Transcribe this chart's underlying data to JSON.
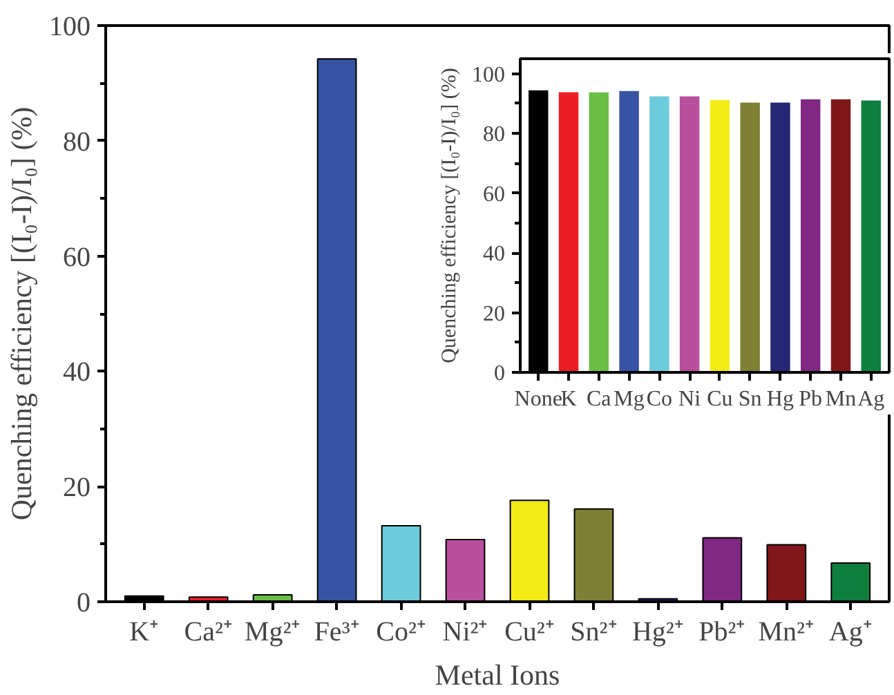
{
  "chart_data": [
    {
      "type": "bar",
      "xlabel": "Metal Ions",
      "ylabel": "Quenching efficiency [(I₀-I)/I₀] (%)",
      "categories": [
        "K⁺",
        "Ca²⁺",
        "Mg²⁺",
        "Fe³⁺",
        "Co²⁺",
        "Ni²⁺",
        "Cu²⁺",
        "Sn²⁺",
        "Hg²⁺",
        "Pb²⁺",
        "Mn²⁺",
        "Ag⁺"
      ],
      "values": [
        1.0,
        0.8,
        1.2,
        94.2,
        13.2,
        10.8,
        17.6,
        16.1,
        0.5,
        11.1,
        9.9,
        6.7
      ],
      "colors": [
        "#000000",
        "#ee1c24",
        "#6abd45",
        "#3853a4",
        "#6cccdb",
        "#b8509e",
        "#f2eb16",
        "#7f8034",
        "#262875",
        "#7f2982",
        "#7f1618",
        "#0f7f3e"
      ],
      "ylim": [
        0,
        100
      ],
      "yticks": [
        0,
        20,
        40,
        60,
        80,
        100
      ],
      "grid": false
    },
    {
      "type": "bar",
      "ylabel": "Quenching efficiency [(I₀-I)/I₀] (%)",
      "categories": [
        "None",
        "K",
        "Ca",
        "Mg",
        "Co",
        "Ni",
        "Cu",
        "Sn",
        "Hg",
        "Pb",
        "Mn",
        "Ag"
      ],
      "values": [
        94.4,
        93.8,
        93.7,
        94.2,
        92.4,
        92.4,
        91.2,
        90.3,
        90.3,
        91.4,
        91.4,
        91.0
      ],
      "colors": [
        "#000000",
        "#ee1c24",
        "#6abd45",
        "#3853a4",
        "#6cccdb",
        "#b8509e",
        "#f2eb16",
        "#7f8034",
        "#262875",
        "#7f2982",
        "#7f1618",
        "#0f7f3e"
      ],
      "ylim": [
        0,
        105
      ],
      "yticks": [
        0,
        20,
        40,
        60,
        80,
        100
      ],
      "grid": false
    }
  ]
}
